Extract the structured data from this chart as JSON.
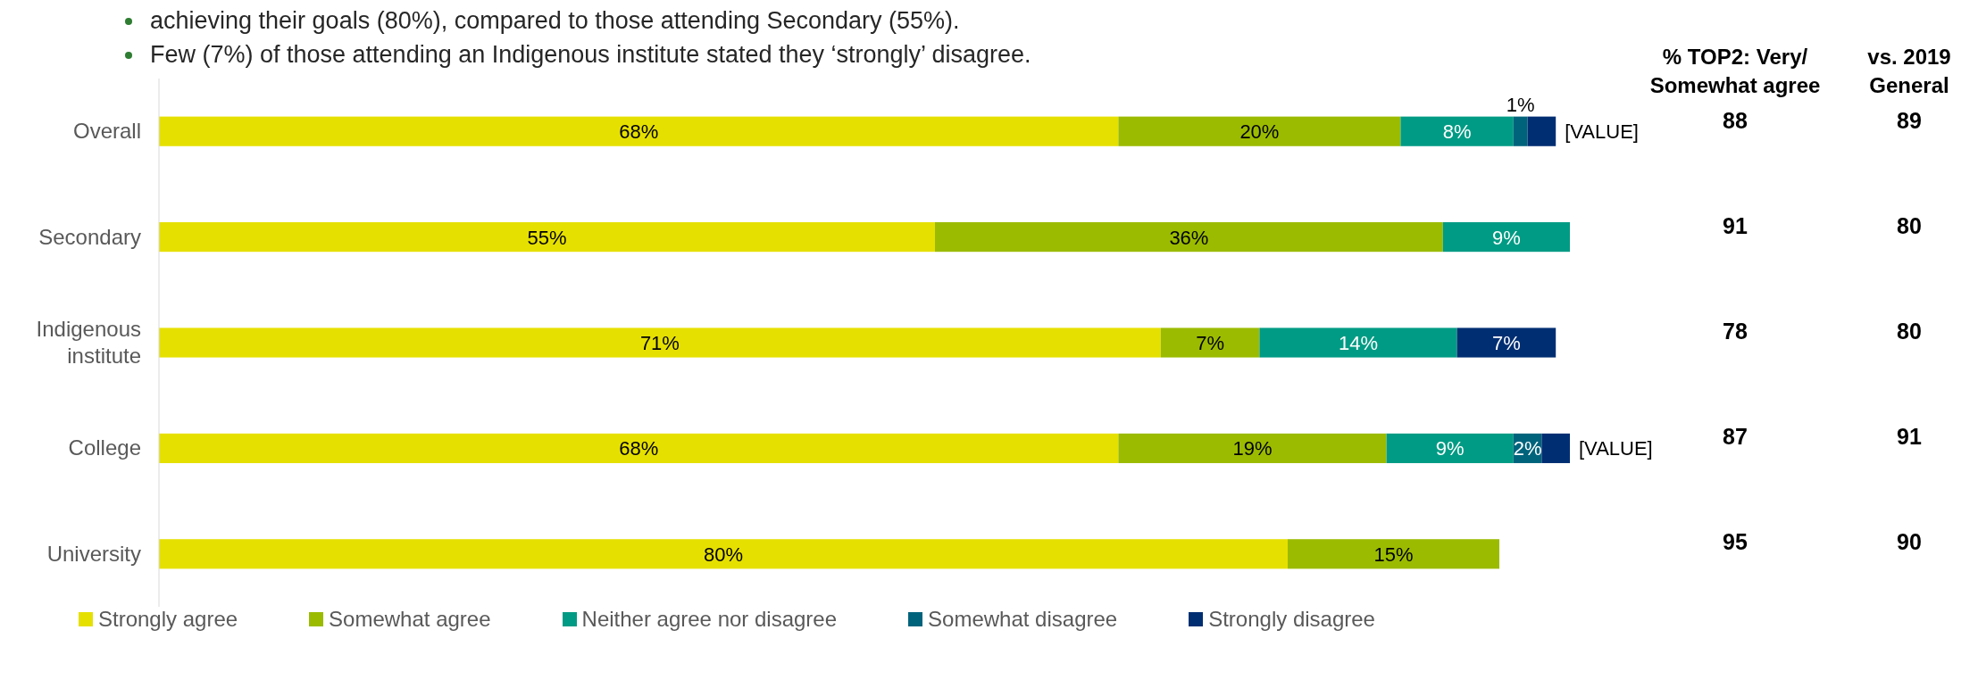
{
  "chart_data": {
    "type": "bar",
    "orientation": "horizontal",
    "stacked": true,
    "categories": [
      "Overall",
      "Secondary",
      "Indigenous institute",
      "College",
      "University"
    ],
    "xlim": [
      0,
      100
    ],
    "tick_labels": false,
    "legend": "bottom",
    "series": [
      {
        "name": "Strongly agree",
        "color": "#e6e000",
        "values": [
          68,
          55,
          71,
          68,
          80
        ],
        "value_labels": [
          "68%",
          "55%",
          "71%",
          "68%",
          "80%"
        ]
      },
      {
        "name": "Somewhat agree",
        "color": "#9bbb00",
        "values": [
          20,
          36,
          7,
          19,
          15
        ],
        "value_labels": [
          "20%",
          "36%",
          "7%",
          "19%",
          "15%"
        ]
      },
      {
        "name": "Neither agree nor disagree",
        "color": "#009b84",
        "values": [
          8,
          9,
          14,
          9,
          null
        ],
        "value_labels": [
          "8%",
          "9%",
          "14%",
          "9%",
          null
        ]
      },
      {
        "name": "Somewhat disagree",
        "color": "#00637c",
        "values": [
          1,
          null,
          null,
          2,
          null
        ],
        "value_labels": [
          "1%",
          null,
          null,
          "2%",
          null
        ]
      },
      {
        "name": "Strongly disagree",
        "color": "#002e72",
        "values": [
          2,
          null,
          7,
          2,
          null
        ],
        "value_labels": [
          "[VALUE]",
          null,
          "7%",
          "[VALUE]",
          null
        ]
      }
    ],
    "annotations": [
      "achieving their goals (80%), compared to those attending Secondary (55%).",
      "Few (7%) of those attending an Indigenous institute stated they ‘strongly’ disagree.",
      "% TOP2: Very/ Somewhat agree",
      "vs. 2019 General",
      "88",
      "89",
      "91",
      "80",
      "78",
      "80",
      "87",
      "91",
      "95",
      "90"
    ]
  }
}
